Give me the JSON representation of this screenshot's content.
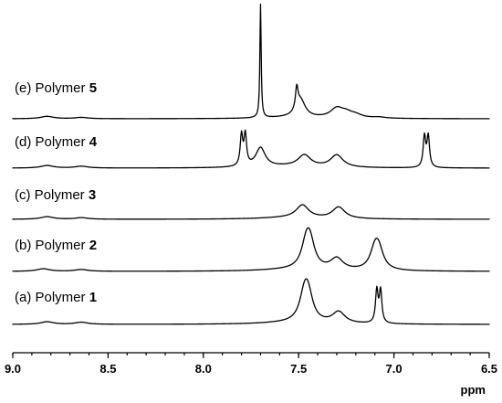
{
  "chart_data": {
    "type": "line",
    "title": "",
    "xlabel": "ppm",
    "ylabel": "",
    "xlim": [
      9.0,
      6.5
    ],
    "x_reversed": true,
    "x_ticks": [
      9.0,
      8.5,
      8.0,
      7.5,
      7.0,
      6.5
    ],
    "x_tick_labels": [
      "9.0",
      "8.5",
      "8.0",
      "7.5",
      "7.0",
      "6.5"
    ],
    "grid": false,
    "series": [
      {
        "name": "(a) Polymer 1",
        "label_prefix": "(a) Polymer ",
        "label_number": "1",
        "peaks": [
          {
            "ppm": 8.82,
            "height": 0.1
          },
          {
            "ppm": 8.64,
            "height": 0.08
          },
          {
            "ppm": 7.47,
            "height": 0.95
          },
          {
            "ppm": 7.45,
            "height": 0.95
          },
          {
            "ppm": 7.29,
            "height": 0.45
          },
          {
            "ppm": 7.09,
            "height": 1.28
          },
          {
            "ppm": 7.07,
            "height": 1.26
          }
        ]
      },
      {
        "name": "(b) Polymer 2",
        "label_prefix": "(b) Polymer ",
        "label_number": "2",
        "peaks": [
          {
            "ppm": 8.84,
            "height": 0.1
          },
          {
            "ppm": 8.64,
            "height": 0.07
          },
          {
            "ppm": 7.46,
            "height": 0.9
          },
          {
            "ppm": 7.44,
            "height": 0.9
          },
          {
            "ppm": 7.3,
            "height": 0.45
          },
          {
            "ppm": 7.1,
            "height": 0.7
          },
          {
            "ppm": 7.08,
            "height": 0.7
          }
        ]
      },
      {
        "name": "(c) Polymer 3",
        "label_prefix": "(c) Polymer ",
        "label_number": "3",
        "peaks": [
          {
            "ppm": 8.82,
            "height": 0.1
          },
          {
            "ppm": 8.64,
            "height": 0.06
          },
          {
            "ppm": 7.48,
            "height": 0.5
          },
          {
            "ppm": 7.29,
            "height": 0.45
          }
        ]
      },
      {
        "name": "(d) Polymer 4",
        "label_prefix": "(d) Polymer ",
        "label_number": "4",
        "peaks": [
          {
            "ppm": 8.82,
            "height": 0.1
          },
          {
            "ppm": 8.64,
            "height": 0.07
          },
          {
            "ppm": 7.8,
            "height": 1.2
          },
          {
            "ppm": 7.78,
            "height": 1.2
          },
          {
            "ppm": 7.7,
            "height": 0.75
          },
          {
            "ppm": 7.47,
            "height": 0.45
          },
          {
            "ppm": 7.3,
            "height": 0.48
          },
          {
            "ppm": 6.84,
            "height": 1.2
          },
          {
            "ppm": 6.82,
            "height": 1.2
          }
        ]
      },
      {
        "name": "(e) Polymer 5",
        "label_prefix": "(e) Polymer ",
        "label_number": "5",
        "peaks": [
          {
            "ppm": 8.82,
            "height": 0.13
          },
          {
            "ppm": 8.64,
            "height": 0.07
          },
          {
            "ppm": 7.7,
            "height": 6.2
          },
          {
            "ppm": 7.51,
            "height": 1.15
          },
          {
            "ppm": 7.49,
            "height": 0.95
          },
          {
            "ppm": 7.3,
            "height": 0.5
          },
          {
            "ppm": 7.25,
            "height": 0.25
          },
          {
            "ppm": 7.2,
            "height": 0.15
          },
          {
            "ppm": 7.08,
            "height": 0.06
          }
        ]
      }
    ]
  }
}
